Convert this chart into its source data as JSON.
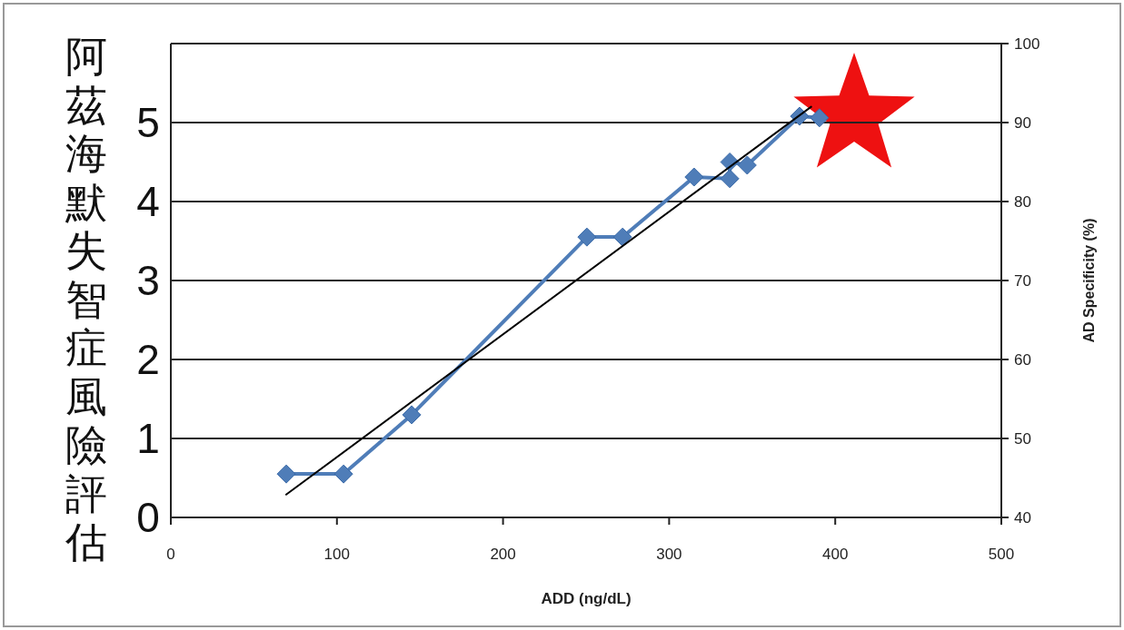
{
  "chart_data": {
    "type": "line",
    "xlabel": "ADD (ng/dL)",
    "ylabel": "阿茲海默失智症風險評估",
    "y2label": "AD Specificity (%)",
    "xlim": [
      0,
      500
    ],
    "xticks": [
      0,
      100,
      200,
      300,
      400,
      500
    ],
    "ylim": [
      0,
      6
    ],
    "yticks": [
      0,
      1,
      2,
      3,
      4,
      5
    ],
    "y2lim": [
      40,
      100
    ],
    "y2ticks": [
      40,
      50,
      60,
      70,
      80,
      90,
      100
    ],
    "grid": "y",
    "series": [
      {
        "color": "#4f7db8",
        "marker": "diamond",
        "x": [
          69.5,
          104,
          145,
          250.5,
          272,
          315,
          336.5,
          336.5,
          347,
          378.5,
          390.5
        ],
        "values": [
          0.55,
          0.55,
          1.3,
          3.55,
          3.55,
          4.31,
          4.29,
          4.5,
          4.46,
          5.08,
          5.06
        ]
      },
      {
        "color": "#000000",
        "marker": "none",
        "x": [
          69.5,
          385.5
        ],
        "values": [
          0.29,
          5.2
        ]
      }
    ]
  }
}
